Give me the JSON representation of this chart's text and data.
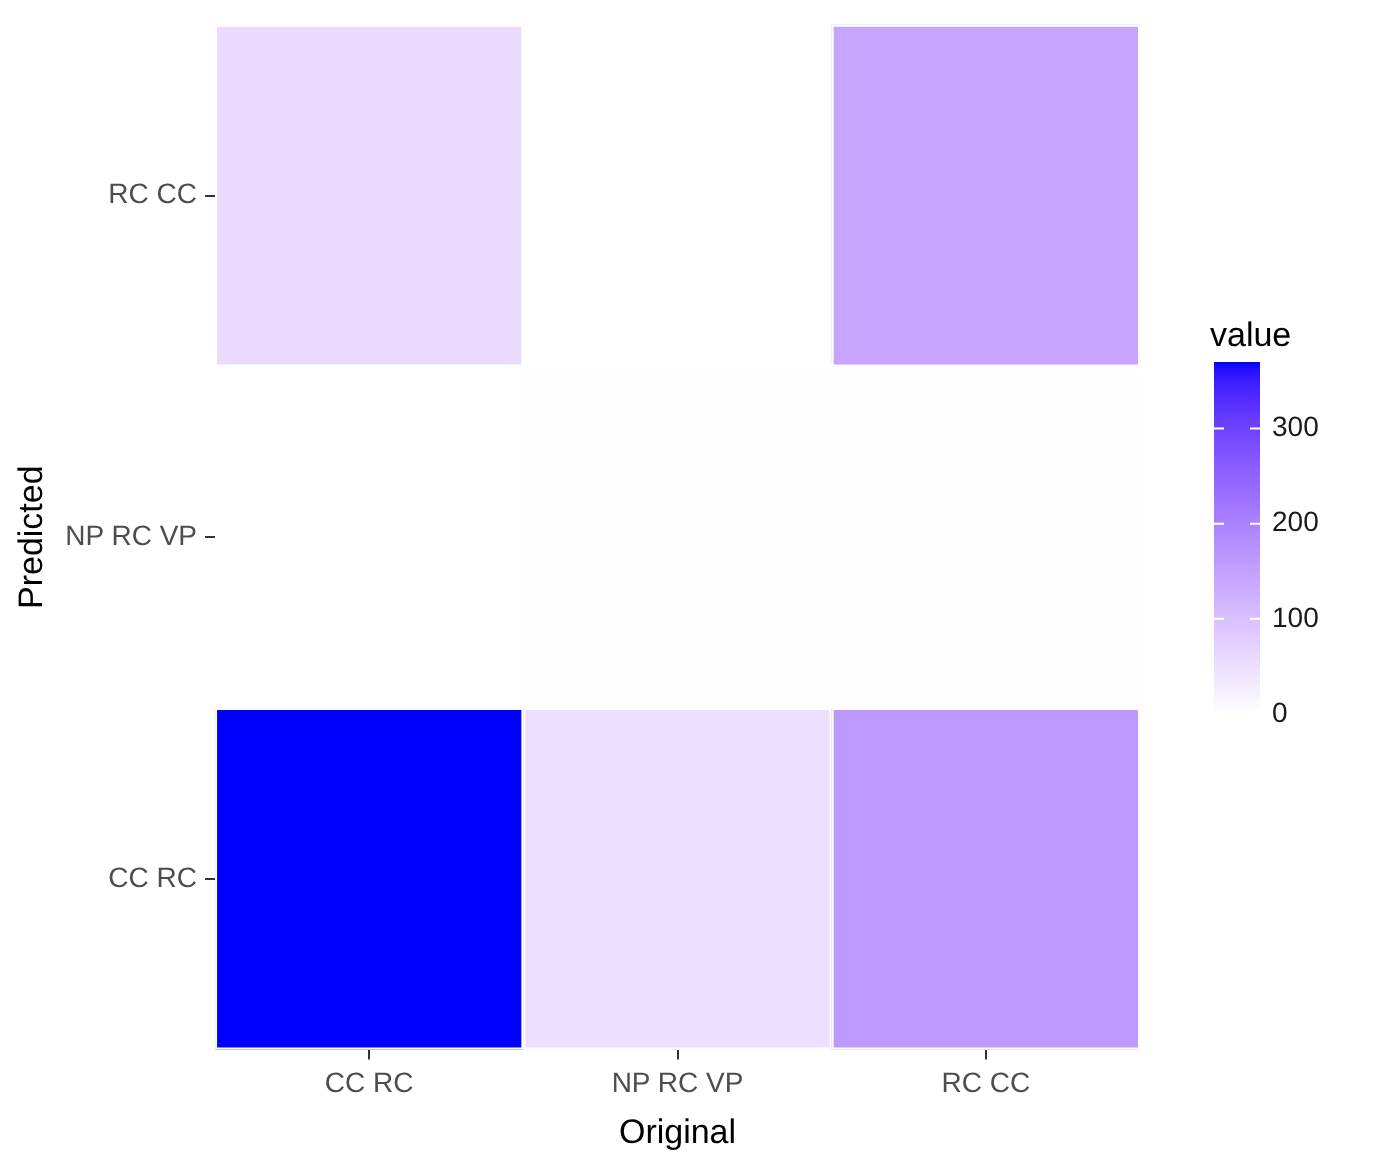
{
  "chart_data": {
    "type": "heatmap",
    "xlabel": "Original",
    "ylabel": "Predicted",
    "clabel": "value",
    "categories": [
      "CC RC",
      "NP RC VP",
      "RC CC"
    ],
    "y_categories": [
      "RC CC",
      "NP RC VP",
      "CC RC"
    ],
    "cells": [
      [
        55,
        0,
        145
      ],
      [
        0,
        1,
        1
      ],
      [
        370,
        50,
        165
      ]
    ],
    "clim": [
      0,
      370
    ],
    "cticks": [
      0,
      100,
      200,
      300
    ],
    "colors": [
      "#ffffff",
      "#0000ff"
    ],
    "grid": false
  }
}
